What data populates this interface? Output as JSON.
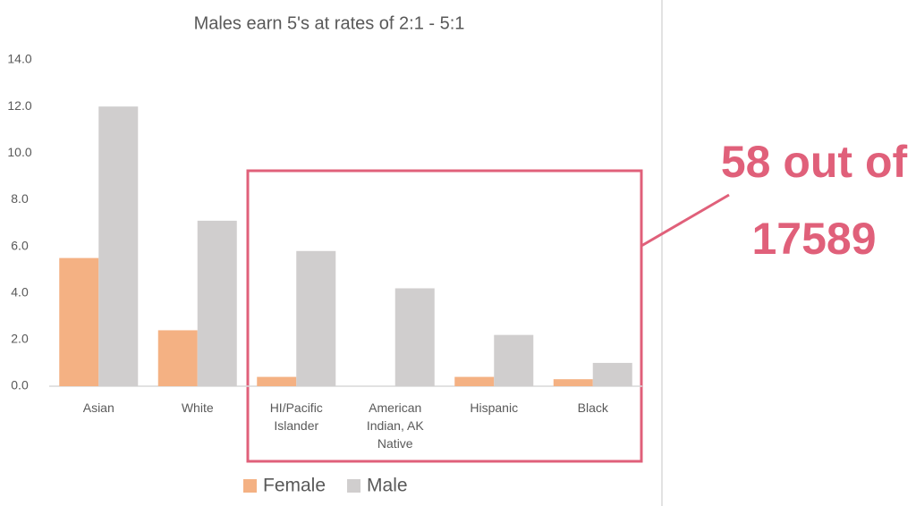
{
  "chart_data": {
    "type": "bar",
    "title": "Males earn 5's at rates of 2:1 - 5:1",
    "categories": [
      "Asian",
      "White",
      "HI/Pacific Islander",
      "American Indian, AK Native",
      "Hispanic",
      "Black"
    ],
    "series": [
      {
        "name": "Female",
        "color": "#f4b183",
        "values": [
          5.5,
          2.4,
          0.4,
          0,
          0.4,
          0.3
        ]
      },
      {
        "name": "Male",
        "color": "#d0cece",
        "values": [
          12.0,
          7.1,
          5.8,
          4.2,
          2.2,
          1.0
        ]
      }
    ],
    "ylim": [
      0,
      14
    ],
    "yticks": [
      {
        "value": 0,
        "label": "0.0"
      },
      {
        "value": 2,
        "label": "2.0"
      },
      {
        "value": 4,
        "label": "4.0"
      },
      {
        "value": 6,
        "label": "6.0"
      },
      {
        "value": 8,
        "label": "8.0"
      },
      {
        "value": 10,
        "label": "10.0"
      },
      {
        "value": 12,
        "label": "12.0"
      },
      {
        "value": 14,
        "label": "14.0"
      }
    ],
    "grid": false,
    "legend": "bottom",
    "annotation": "58 out of 17589"
  }
}
